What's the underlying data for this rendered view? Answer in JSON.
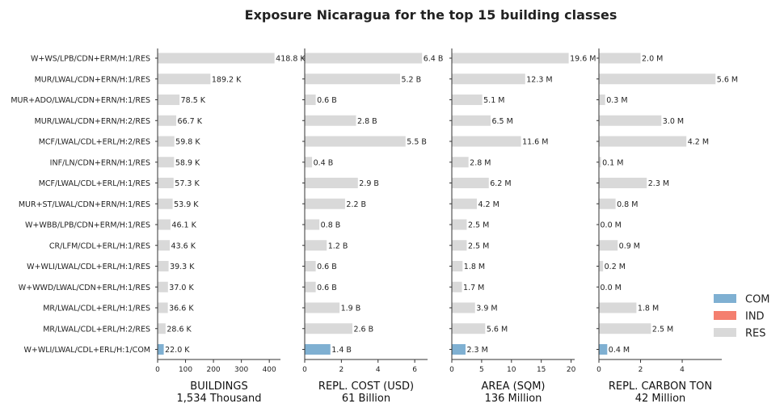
{
  "chart_data": {
    "type": "bar",
    "orientation": "horizontal",
    "title": "Exposure Nicaragua for the top 15 building classes",
    "categories": [
      "W+WS/LPB/CDN+ERM/H:1/RES",
      "MUR/LWAL/CDN+ERN/H:1/RES",
      "MUR+ADO/LWAL/CDN+ERN/H:1/RES",
      "MUR/LWAL/CDN+ERN/H:2/RES",
      "MCF/LWAL/CDL+ERL/H:2/RES",
      "INF/LN/CDN+ERN/H:1/RES",
      "MCF/LWAL/CDL+ERL/H:1/RES",
      "MUR+ST/LWAL/CDN+ERN/H:1/RES",
      "W+WBB/LPB/CDN+ERM/H:1/RES",
      "CR/LFM/CDL+ERL/H:1/RES",
      "W+WLI/LWAL/CDL+ERL/H:1/RES",
      "W+WWD/LWAL/CDN+ERL/H:1/RES",
      "MR/LWAL/CDL+ERL/H:1/RES",
      "MR/LWAL/CDL+ERL/H:2/RES",
      "W+WLI/LWAL/CDL+ERL/H:1/COM"
    ],
    "occupancy": [
      "RES",
      "RES",
      "RES",
      "RES",
      "RES",
      "RES",
      "RES",
      "RES",
      "RES",
      "RES",
      "RES",
      "RES",
      "RES",
      "RES",
      "COM"
    ],
    "legend": {
      "position": "right",
      "entries": [
        {
          "name": "COM",
          "color": "#7fb0d2"
        },
        {
          "name": "IND",
          "color": "#f47f6f"
        },
        {
          "name": "RES",
          "color": "#d9d9d9"
        }
      ]
    },
    "panels": [
      {
        "xlabel": "BUILDINGS",
        "total": "1,534 Thousand",
        "xlim": [
          0,
          440
        ],
        "ticks": [
          0,
          100,
          200,
          300,
          400
        ],
        "tick_labels": [
          "0",
          "100",
          "200",
          "300",
          "400"
        ],
        "values": [
          418.8,
          189.2,
          78.5,
          66.7,
          59.8,
          58.9,
          57.3,
          53.9,
          46.1,
          43.6,
          39.3,
          37.0,
          36.6,
          28.6,
          22.0
        ],
        "labels": [
          "418.8 K",
          "189.2 K",
          "78.5 K",
          "66.7 K",
          "59.8 K",
          "58.9 K",
          "57.3 K",
          "53.9 K",
          "46.1 K",
          "43.6 K",
          "39.3 K",
          "37.0 K",
          "36.6 K",
          "28.6 K",
          "22.0 K"
        ]
      },
      {
        "xlabel": "REPL. COST (USD)",
        "total": "61 Billion",
        "xlim": [
          0,
          6.7
        ],
        "ticks": [
          0,
          2,
          4,
          6
        ],
        "tick_labels": [
          "0",
          "2",
          "4",
          "6"
        ],
        "values": [
          6.4,
          5.2,
          0.6,
          2.8,
          5.5,
          0.4,
          2.9,
          2.2,
          0.8,
          1.2,
          0.6,
          0.6,
          1.9,
          2.6,
          1.4
        ],
        "labels": [
          "6.4 B",
          "5.2 B",
          "0.6 B",
          "2.8 B",
          "5.5 B",
          "0.4 B",
          "2.9 B",
          "2.2 B",
          "0.8 B",
          "1.2 B",
          "0.6 B",
          "0.6 B",
          "1.9 B",
          "2.6 B",
          "1.4 B"
        ]
      },
      {
        "xlabel": "AREA (SQM)",
        "total": "136 Million",
        "xlim": [
          0,
          20.6
        ],
        "ticks": [
          0,
          5,
          10,
          15,
          20
        ],
        "tick_labels": [
          "0",
          "5",
          "10",
          "15",
          "20"
        ],
        "values": [
          19.6,
          12.3,
          5.1,
          6.5,
          11.6,
          2.8,
          6.2,
          4.2,
          2.5,
          2.5,
          1.8,
          1.7,
          3.9,
          5.6,
          2.3
        ],
        "labels": [
          "19.6 M",
          "12.3 M",
          "5.1 M",
          "6.5 M",
          "11.6 M",
          "2.8 M",
          "6.2 M",
          "4.2 M",
          "2.5 M",
          "2.5 M",
          "1.8 M",
          "1.7 M",
          "3.9 M",
          "5.6 M",
          "2.3 M"
        ]
      },
      {
        "xlabel": "REPL. CARBON TON",
        "total": "42 Million",
        "xlim": [
          0,
          5.9
        ],
        "ticks": [
          0,
          2,
          4
        ],
        "tick_labels": [
          "0",
          "2",
          "4"
        ],
        "values": [
          2.0,
          5.6,
          0.3,
          3.0,
          4.2,
          0.1,
          2.3,
          0.8,
          0.0,
          0.9,
          0.2,
          0.0,
          1.8,
          2.5,
          0.4
        ],
        "labels": [
          "2.0 M",
          "5.6 M",
          "0.3 M",
          "3.0 M",
          "4.2 M",
          "0.1 M",
          "2.3 M",
          "0.8 M",
          "0.0 M",
          "0.9 M",
          "0.2 M",
          "0.0 M",
          "1.8 M",
          "2.5 M",
          "0.4 M"
        ]
      }
    ]
  }
}
